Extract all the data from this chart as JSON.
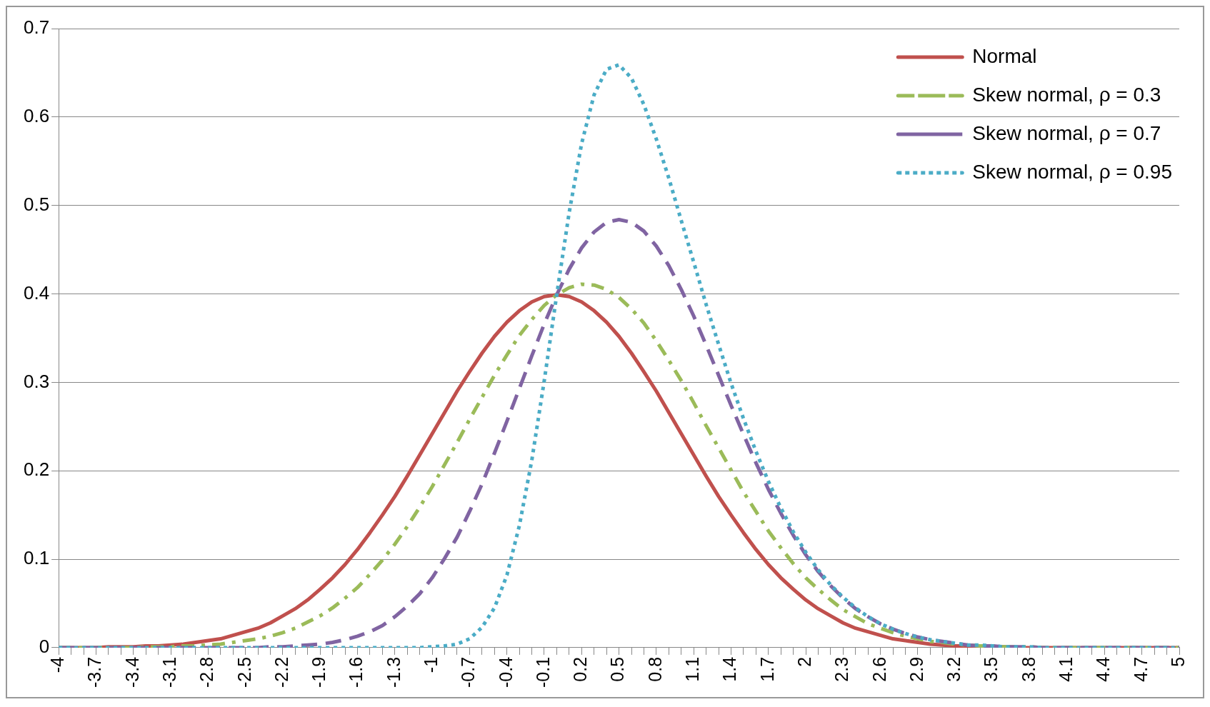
{
  "chart_data": {
    "type": "line",
    "categories": [
      "-4",
      null,
      null,
      "-3.7",
      null,
      null,
      "-3.4",
      null,
      null,
      "-3.1",
      null,
      null,
      "-2.8",
      null,
      null,
      "-2.5",
      null,
      null,
      "-2.2",
      null,
      null,
      "-1.9",
      null,
      null,
      "-1.6",
      null,
      null,
      "-1.3",
      null,
      null,
      "-1",
      null,
      null,
      "-0.7",
      null,
      null,
      "-0.4",
      null,
      null,
      "-0.1",
      null,
      null,
      "0.2",
      null,
      null,
      "0.5",
      null,
      null,
      "0.8",
      null,
      null,
      "1.1",
      null,
      null,
      "1.4",
      null,
      null,
      "1.7",
      null,
      null,
      "2",
      null,
      null,
      "2.3",
      null,
      null,
      "2.6",
      null,
      null,
      "2.9",
      null,
      null,
      "3.2",
      null,
      null,
      "3.5",
      null,
      null,
      "3.8",
      null,
      null,
      "4.1",
      null,
      null,
      "4.4",
      null,
      null,
      "4.7",
      null,
      null,
      "5"
    ],
    "series": [
      {
        "name": "Normal",
        "color": "#c0504d",
        "line_style": "solid",
        "values": [
          0,
          0,
          0,
          0,
          0.001,
          0.001,
          0.001,
          0.002,
          0.002,
          0.003,
          0.004,
          0.006,
          0.008,
          0.01,
          0.014,
          0.018,
          0.022,
          0.028,
          0.036,
          0.044,
          0.054,
          0.066,
          0.079,
          0.094,
          0.111,
          0.13,
          0.15,
          0.171,
          0.194,
          0.218,
          0.242,
          0.266,
          0.29,
          0.312,
          0.333,
          0.352,
          0.368,
          0.381,
          0.391,
          0.397,
          0.399,
          0.397,
          0.391,
          0.381,
          0.368,
          0.352,
          0.333,
          0.312,
          0.29,
          0.266,
          0.242,
          0.218,
          0.194,
          0.171,
          0.15,
          0.13,
          0.111,
          0.094,
          0.079,
          0.066,
          0.054,
          0.044,
          0.036,
          0.028,
          0.022,
          0.018,
          0.014,
          0.01,
          0.008,
          0.006,
          0.004,
          0.003,
          0.002,
          0.002,
          0.001,
          0.001,
          0.001,
          0,
          0,
          0,
          0,
          0,
          0,
          0,
          0,
          0,
          0,
          0,
          0,
          0,
          0
        ]
      },
      {
        "name": "Skew normal, ρ = 0.3",
        "color": "#9bbb59",
        "line_style": "dashdot",
        "values": [
          0,
          0,
          0,
          0,
          0,
          0,
          0,
          0.001,
          0.001,
          0.001,
          0.002,
          0.002,
          0.003,
          0.004,
          0.006,
          0.008,
          0.01,
          0.013,
          0.017,
          0.022,
          0.029,
          0.036,
          0.045,
          0.056,
          0.068,
          0.083,
          0.099,
          0.117,
          0.137,
          0.159,
          0.182,
          0.207,
          0.232,
          0.258,
          0.283,
          0.308,
          0.331,
          0.353,
          0.371,
          0.387,
          0.399,
          0.407,
          0.411,
          0.41,
          0.405,
          0.396,
          0.383,
          0.367,
          0.347,
          0.325,
          0.302,
          0.277,
          0.251,
          0.226,
          0.201,
          0.176,
          0.154,
          0.132,
          0.113,
          0.095,
          0.079,
          0.066,
          0.054,
          0.043,
          0.035,
          0.027,
          0.022,
          0.017,
          0.013,
          0.01,
          0.007,
          0.006,
          0.004,
          0.003,
          0.002,
          0.002,
          0.001,
          0.001,
          0.001,
          0,
          0,
          0,
          0,
          0,
          0,
          0,
          0,
          0,
          0,
          0,
          0
        ]
      },
      {
        "name": "Skew normal, ρ = 0.7",
        "color": "#8064a2",
        "line_style": "dashed",
        "values": [
          0,
          0,
          0,
          0,
          0,
          0,
          0,
          0,
          0,
          0,
          0,
          0,
          0,
          0,
          0,
          0,
          0,
          0.001,
          0.001,
          0.002,
          0.003,
          0.004,
          0.006,
          0.009,
          0.013,
          0.018,
          0.025,
          0.035,
          0.047,
          0.061,
          0.079,
          0.101,
          0.125,
          0.154,
          0.185,
          0.22,
          0.256,
          0.293,
          0.33,
          0.366,
          0.399,
          0.428,
          0.452,
          0.47,
          0.481,
          0.484,
          0.481,
          0.471,
          0.454,
          0.432,
          0.405,
          0.375,
          0.342,
          0.308,
          0.274,
          0.241,
          0.209,
          0.179,
          0.152,
          0.127,
          0.105,
          0.086,
          0.07,
          0.056,
          0.044,
          0.035,
          0.027,
          0.021,
          0.016,
          0.012,
          0.009,
          0.007,
          0.005,
          0.003,
          0.002,
          0.002,
          0.001,
          0.001,
          0.001,
          0,
          0,
          0,
          0,
          0,
          0,
          0,
          0,
          0,
          0,
          0,
          0
        ]
      },
      {
        "name": "Skew normal, ρ = 0.95",
        "color": "#4bacc6",
        "line_style": "dotted",
        "values": [
          0,
          0,
          0,
          0,
          0,
          0,
          0,
          0,
          0,
          0,
          0,
          0,
          0,
          0,
          0,
          0,
          0,
          0,
          0,
          0,
          0,
          0,
          0,
          0,
          0,
          0,
          0,
          0,
          0,
          0,
          0.001,
          0.002,
          0.004,
          0.01,
          0.023,
          0.045,
          0.082,
          0.138,
          0.212,
          0.302,
          0.399,
          0.492,
          0.57,
          0.625,
          0.654,
          0.659,
          0.644,
          0.614,
          0.575,
          0.531,
          0.483,
          0.436,
          0.388,
          0.343,
          0.299,
          0.259,
          0.222,
          0.188,
          0.158,
          0.131,
          0.108,
          0.088,
          0.071,
          0.057,
          0.045,
          0.035,
          0.027,
          0.021,
          0.016,
          0.012,
          0.009,
          0.007,
          0.005,
          0.003,
          0.003,
          0.002,
          0.001,
          0.001,
          0.001,
          0,
          0,
          0,
          0,
          0,
          0,
          0,
          0,
          0,
          0,
          0,
          0
        ]
      }
    ],
    "ylim": [
      0,
      0.7
    ],
    "yticks": [
      0,
      0.1,
      0.2,
      0.3,
      0.4,
      0.5,
      0.6,
      0.7
    ],
    "grid": "y",
    "legend": "top right",
    "marker": "none"
  }
}
